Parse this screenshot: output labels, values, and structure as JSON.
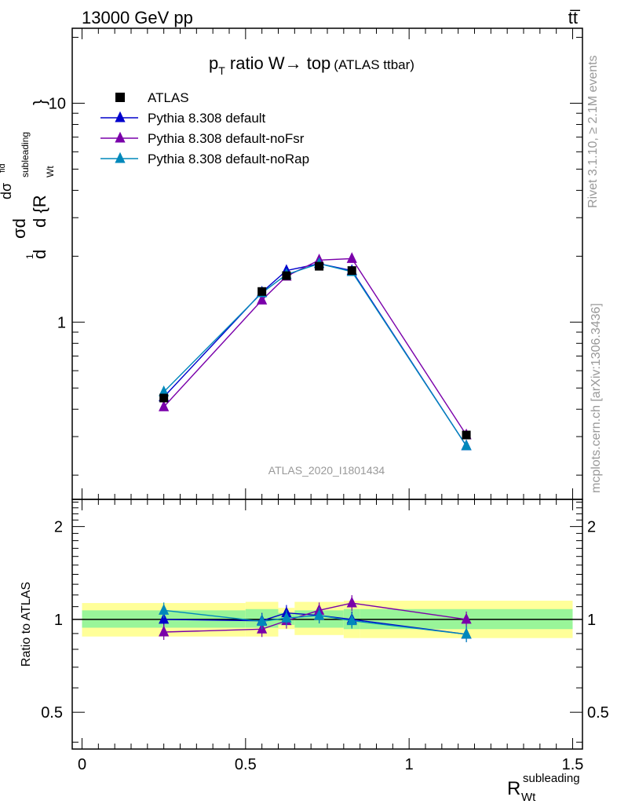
{
  "header": {
    "left": "13000 GeV pp",
    "right": "tt̅"
  },
  "side_labels": {
    "events": "Rivet 3.1.10, ≥ 2.1M events",
    "source": "mcplots.cern.ch [arXiv:1306.3436]"
  },
  "watermark": "ATLAS_2020_I1801434",
  "title": {
    "main": "p",
    "sub": "T",
    "rest": " ratio W→ top",
    "small": "(ATLAS ttbar)"
  },
  "axes": {
    "ylabel_upper": "dσ/d{R_Wt^subleading}",
    "ylabel_upper_parts": {
      "a": "d",
      "b": "1",
      "c": "σ",
      "d": "d",
      "e": "dσ",
      "f": "fid",
      "g": "d {R",
      "h": "subleading",
      "i": "Wt",
      "j": "}"
    },
    "ylabel_lower": "Ratio to ATLAS",
    "xlabel": {
      "main": "R",
      "sup": "subleading",
      "sub": "Wt"
    },
    "upper_ticks": [
      "10",
      "1"
    ],
    "lower_ticks": [
      "2",
      "1",
      "0.5"
    ],
    "x_ticks": [
      "0",
      "0.5",
      "1",
      "1.5"
    ]
  },
  "legend": [
    {
      "label": "ATLAS",
      "color": "#000000",
      "marker": "square"
    },
    {
      "label": "Pythia 8.308 default",
      "color": "#0000cc",
      "marker": "triangle"
    },
    {
      "label": "Pythia 8.308 default-noFsr",
      "color": "#7a00aa",
      "marker": "triangle"
    },
    {
      "label": "Pythia 8.308 default-noRap",
      "color": "#0088bb",
      "marker": "triangle"
    }
  ],
  "chart_data": {
    "type": "line",
    "xlim": [
      -0.03,
      1.53
    ],
    "upper": {
      "ylim": [
        0.155,
        22
      ],
      "log": true
    },
    "lower": {
      "ylim": [
        0.38,
        2.45
      ],
      "log": true
    },
    "x": [
      0.25,
      0.55,
      0.625,
      0.725,
      0.825,
      1.175
    ],
    "bins": [
      [
        0,
        0.5
      ],
      [
        0.5,
        0.6
      ],
      [
        0.6,
        0.65
      ],
      [
        0.65,
        0.8
      ],
      [
        0.8,
        0.85
      ],
      [
        0.85,
        1.5
      ]
    ],
    "series": [
      {
        "name": "ATLAS",
        "values": [
          0.45,
          1.38,
          1.63,
          1.8,
          1.72,
          0.305
        ]
      },
      {
        "name": "Pythia 8.308 default",
        "values": [
          0.455,
          1.37,
          1.72,
          1.85,
          1.72,
          0.272
        ]
      },
      {
        "name": "Pythia 8.308 default-noFsr",
        "values": [
          0.41,
          1.26,
          1.62,
          1.92,
          1.95,
          0.305
        ]
      },
      {
        "name": "Pythia 8.308 default-noRap",
        "values": [
          0.48,
          1.36,
          1.65,
          1.85,
          1.7,
          0.272
        ]
      }
    ],
    "ratios": [
      {
        "name": "Pythia 8.308 default",
        "values": [
          1.0,
          0.99,
          1.05,
          1.03,
          1.0,
          0.895
        ]
      },
      {
        "name": "Pythia 8.308 default-noFsr",
        "values": [
          0.91,
          0.93,
          0.99,
          1.07,
          1.13,
          1.0
        ]
      },
      {
        "name": "Pythia 8.308 default-noRap",
        "values": [
          1.07,
          0.985,
          1.01,
          1.03,
          0.99,
          0.895
        ]
      }
    ],
    "band_yellow": [
      [
        0.88,
        1.13
      ],
      [
        0.88,
        1.14
      ],
      [
        0.93,
        1.09
      ],
      [
        0.89,
        1.14
      ],
      [
        0.87,
        1.15
      ],
      [
        0.87,
        1.15
      ]
    ],
    "band_green": [
      [
        0.94,
        1.07
      ],
      [
        0.94,
        1.08
      ],
      [
        0.96,
        1.05
      ],
      [
        0.94,
        1.07
      ],
      [
        0.93,
        1.08
      ],
      [
        0.93,
        1.08
      ]
    ]
  }
}
